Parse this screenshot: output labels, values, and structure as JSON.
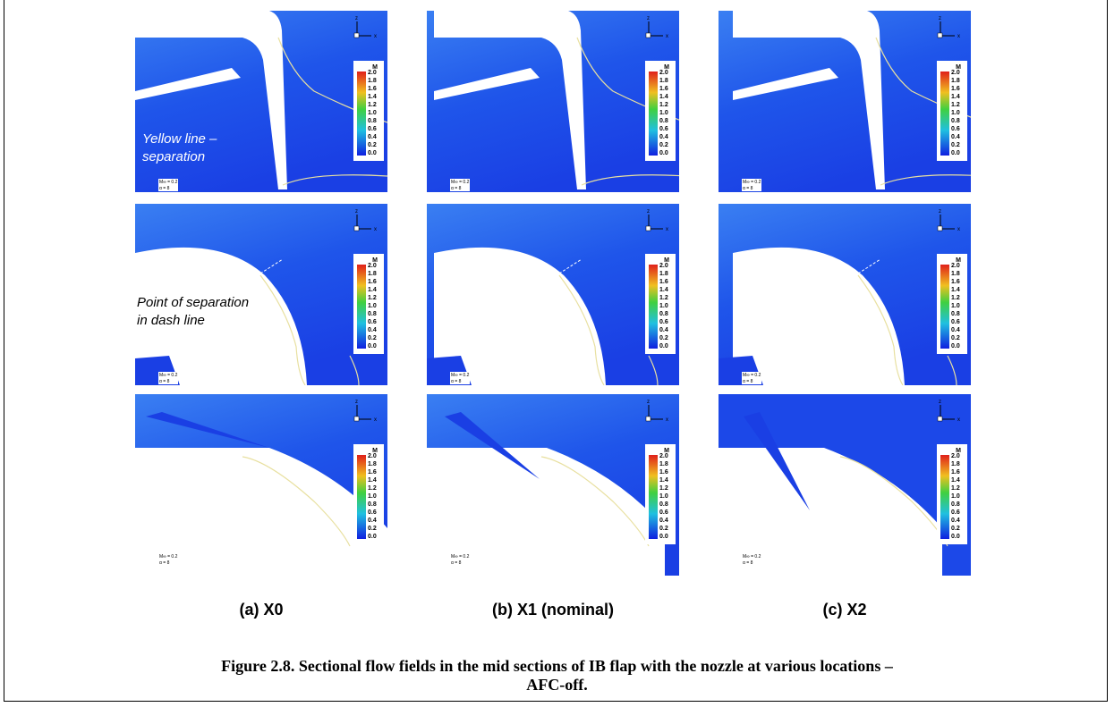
{
  "legend": {
    "title": "M",
    "ticks": [
      "2.0",
      "1.8",
      "1.6",
      "1.4",
      "1.2",
      "1.0",
      "0.8",
      "0.6",
      "0.4",
      "0.2",
      "0.0"
    ]
  },
  "freestream": {
    "mach": "M∞ = 0.2",
    "alpha": "α = 8"
  },
  "axes": {
    "z": "z",
    "x": "x"
  },
  "annotations": [
    {
      "lines": [
        "Yellow line –",
        "separation"
      ]
    },
    {
      "lines": [
        "Point of separation",
        "in dash line"
      ]
    }
  ],
  "columns": [
    {
      "label": "(a)  X0"
    },
    {
      "label": "(b) X1 (nominal)"
    },
    {
      "label": "(c) X2"
    }
  ],
  "caption": [
    "Figure 2.8. Sectional flow fields in the mid sections of IB flap with the nozzle at various locations –",
    "AFC-off."
  ]
}
